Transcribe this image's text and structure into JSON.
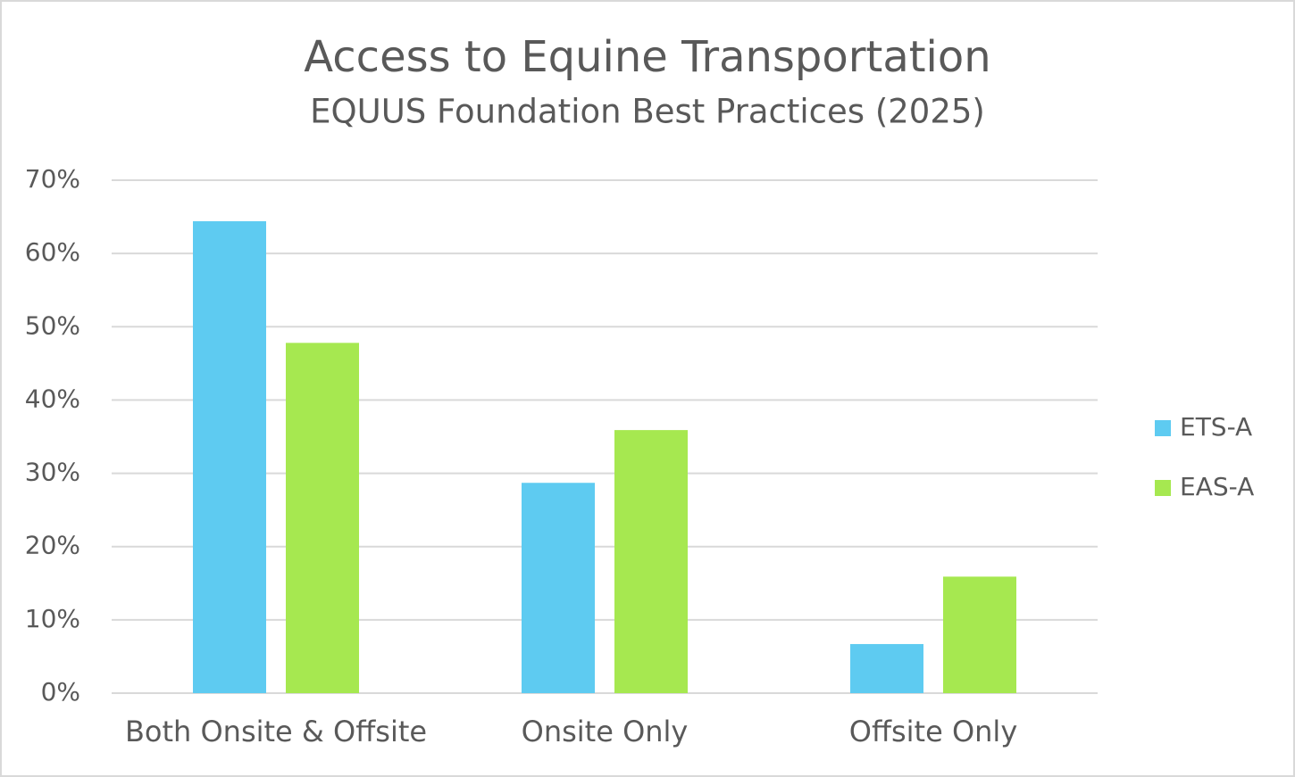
{
  "chart_data": {
    "type": "bar",
    "title": "Access to Equine Transportation",
    "subtitle": "EQUUS Foundation Best Practices (2025)",
    "categories": [
      "Both Onsite & Offsite",
      "Onsite Only",
      "Offsite Only"
    ],
    "series": [
      {
        "name": "ETS-A",
        "color": "#5ecbf1",
        "values": [
          64.4,
          28.7,
          6.7
        ]
      },
      {
        "name": "EAS-A",
        "color": "#a6e850",
        "values": [
          47.8,
          35.9,
          15.9
        ]
      }
    ],
    "ylim": [
      0,
      70
    ],
    "yticks": [
      {
        "value": 0,
        "label": "0%"
      },
      {
        "value": 10,
        "label": "10%"
      },
      {
        "value": 20,
        "label": "20%"
      },
      {
        "value": 30,
        "label": "30%"
      },
      {
        "value": 40,
        "label": "40%"
      },
      {
        "value": 50,
        "label": "50%"
      },
      {
        "value": 60,
        "label": "60%"
      },
      {
        "value": 70,
        "label": "70%"
      }
    ],
    "grid": true,
    "legend": "right"
  }
}
